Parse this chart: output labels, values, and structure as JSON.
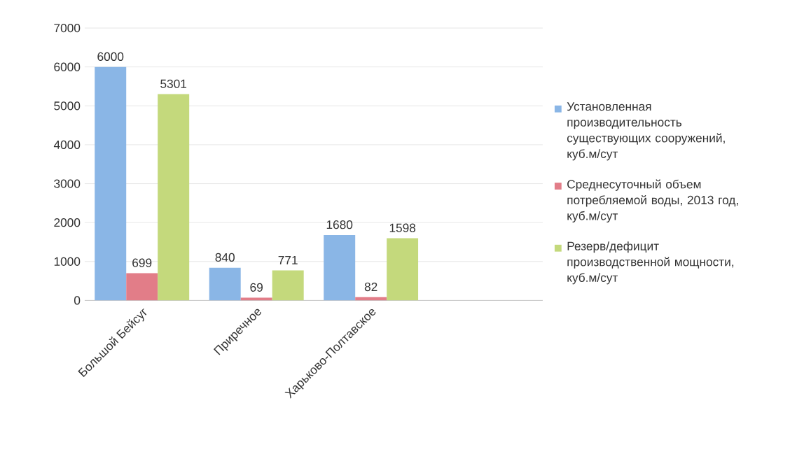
{
  "chart_data": {
    "type": "bar",
    "categories": [
      "Большой Бейсуг",
      "Приречное",
      "Харьково-Полтавское"
    ],
    "series": [
      {
        "name": "Установленная производительность существующих сооружений, куб.м/сут",
        "color": "#8ab6e6",
        "values": [
          6000,
          840,
          1680
        ]
      },
      {
        "name": "Среднесуточный объем потребляемой воды, 2013 год, куб.м/сут",
        "color": "#e27d88",
        "values": [
          699,
          69,
          82
        ]
      },
      {
        "name": "Резерв/дефицит производственной мощности, куб.м/сут",
        "color": "#c4d97c",
        "values": [
          5301,
          771,
          1598
        ]
      }
    ],
    "ylim": [
      0,
      7000
    ],
    "yticks": [
      0,
      1000,
      2000,
      3000,
      4000,
      5000,
      6000,
      7000
    ],
    "grid": "y",
    "legend": "right",
    "data_labels": true
  }
}
